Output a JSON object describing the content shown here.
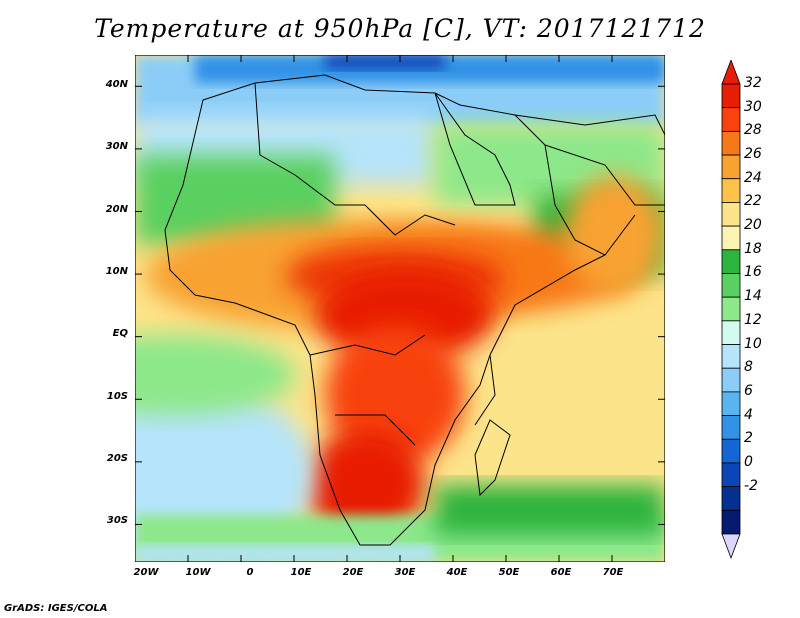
{
  "title": "Temperature at 950hPa [C], VT: 2017121712",
  "credit": "GrADS: IGES/COLA",
  "map": {
    "lon_range": [
      -20,
      80
    ],
    "lat_range": [
      -36,
      45
    ],
    "lat_ticks": [
      "40N",
      "30N",
      "20N",
      "10N",
      "EQ",
      "10S",
      "20S",
      "30S"
    ],
    "lat_values": [
      40,
      30,
      20,
      10,
      0,
      -10,
      -20,
      -30
    ],
    "lon_ticks": [
      "20W",
      "10W",
      "0",
      "10E",
      "20E",
      "30E",
      "40E",
      "50E",
      "60E",
      "70E"
    ],
    "lon_values": [
      -20,
      -10,
      0,
      10,
      20,
      30,
      40,
      50,
      60,
      70
    ]
  },
  "colorbar": {
    "labels": [
      "32",
      "30",
      "28",
      "26",
      "24",
      "22",
      "20",
      "18",
      "16",
      "14",
      "12",
      "10",
      "8",
      "6",
      "4",
      "2",
      "0",
      "-2"
    ],
    "colors": [
      "#e81d06",
      "#f8420f",
      "#f87818",
      "#f8a231",
      "#fcc24a",
      "#fce48a",
      "#fcf4b2",
      "#2cb43c",
      "#5ad060",
      "#8ce88a",
      "#d4faf0",
      "#b6e4fa",
      "#8ccdf8",
      "#5ab4f0",
      "#3292e6",
      "#1466d4",
      "#0a46b8",
      "#063090",
      "#061a72"
    ],
    "top_arrow_color": "#e81d06",
    "bottom_arrow_color": "#dcd6fa"
  }
}
